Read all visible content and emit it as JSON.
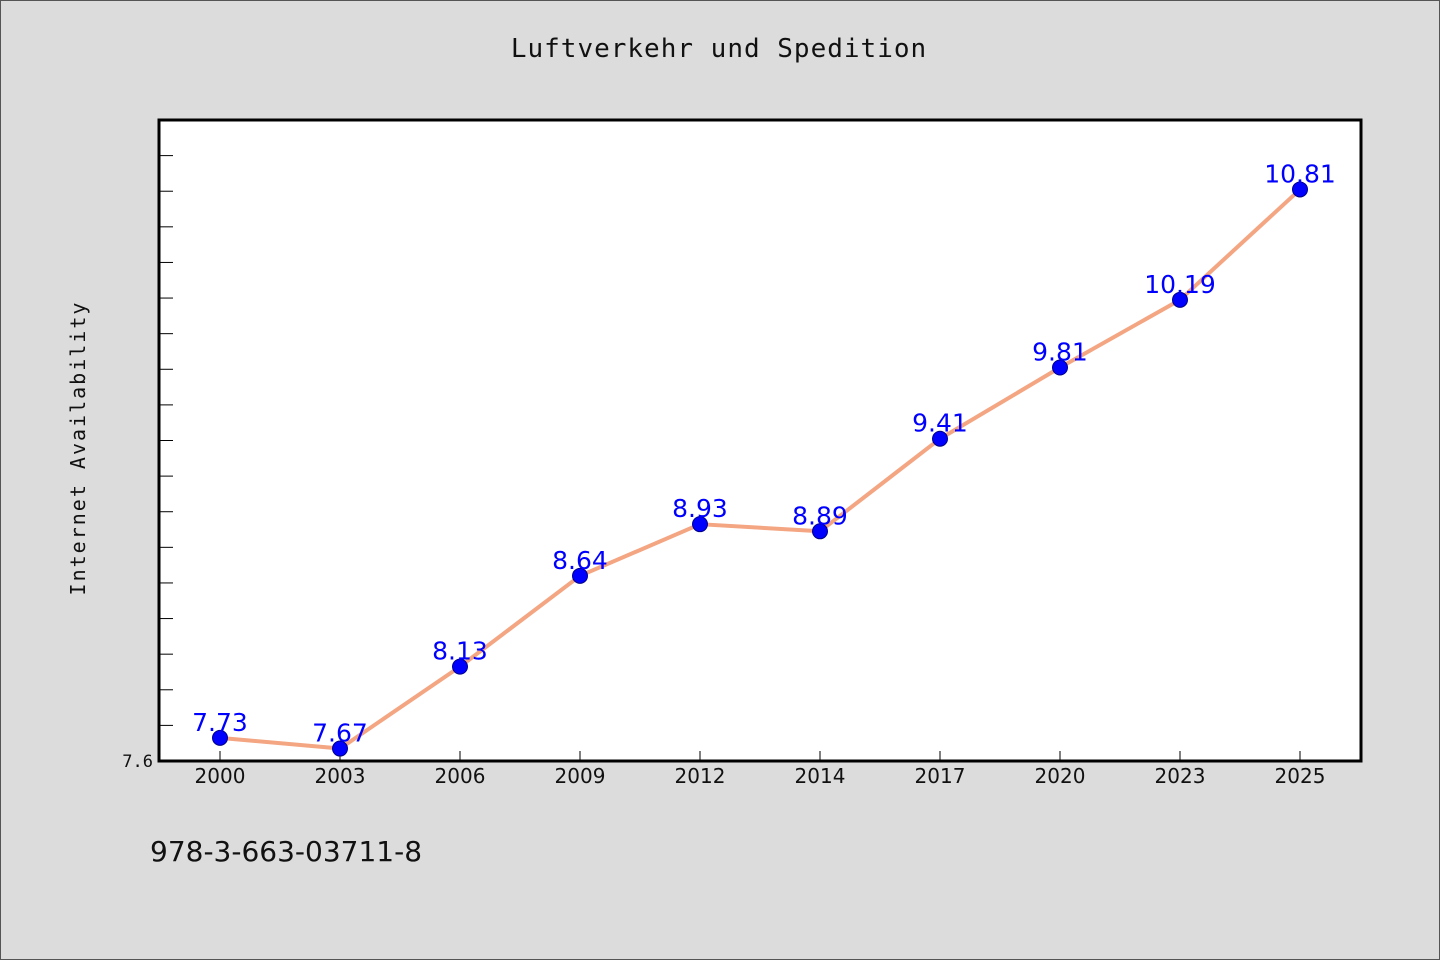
{
  "chart_data": {
    "type": "line",
    "title": "Luftverkehr und Spedition",
    "xlabel": "",
    "ylabel": "Internet Availability",
    "categories": [
      "2000",
      "2003",
      "2006",
      "2009",
      "2012",
      "2014",
      "2017",
      "2020",
      "2023",
      "2025"
    ],
    "series": [
      {
        "values": [
          7.73,
          7.67,
          8.13,
          8.64,
          8.93,
          8.89,
          9.41,
          9.81,
          10.19,
          10.81
        ],
        "labels": [
          "7.73",
          "7.67",
          "8.13",
          "8.64",
          "8.93",
          "8.89",
          "9.41",
          "9.81",
          "10.19",
          "10.81"
        ]
      }
    ],
    "ylim": [
      7.6,
      11.2
    ],
    "y_tick_labels": [
      "7.6"
    ],
    "y_minor_tick_step": 0.2,
    "grid": false,
    "legend": "none",
    "colors": {
      "line": "#f4a582",
      "marker": "#0000ff",
      "data_label": "#0000ff",
      "plot_background": "#ffffff",
      "figure_background": "#dcdcdc"
    }
  },
  "footer": {
    "isbn": "978-3-663-03711-8"
  }
}
